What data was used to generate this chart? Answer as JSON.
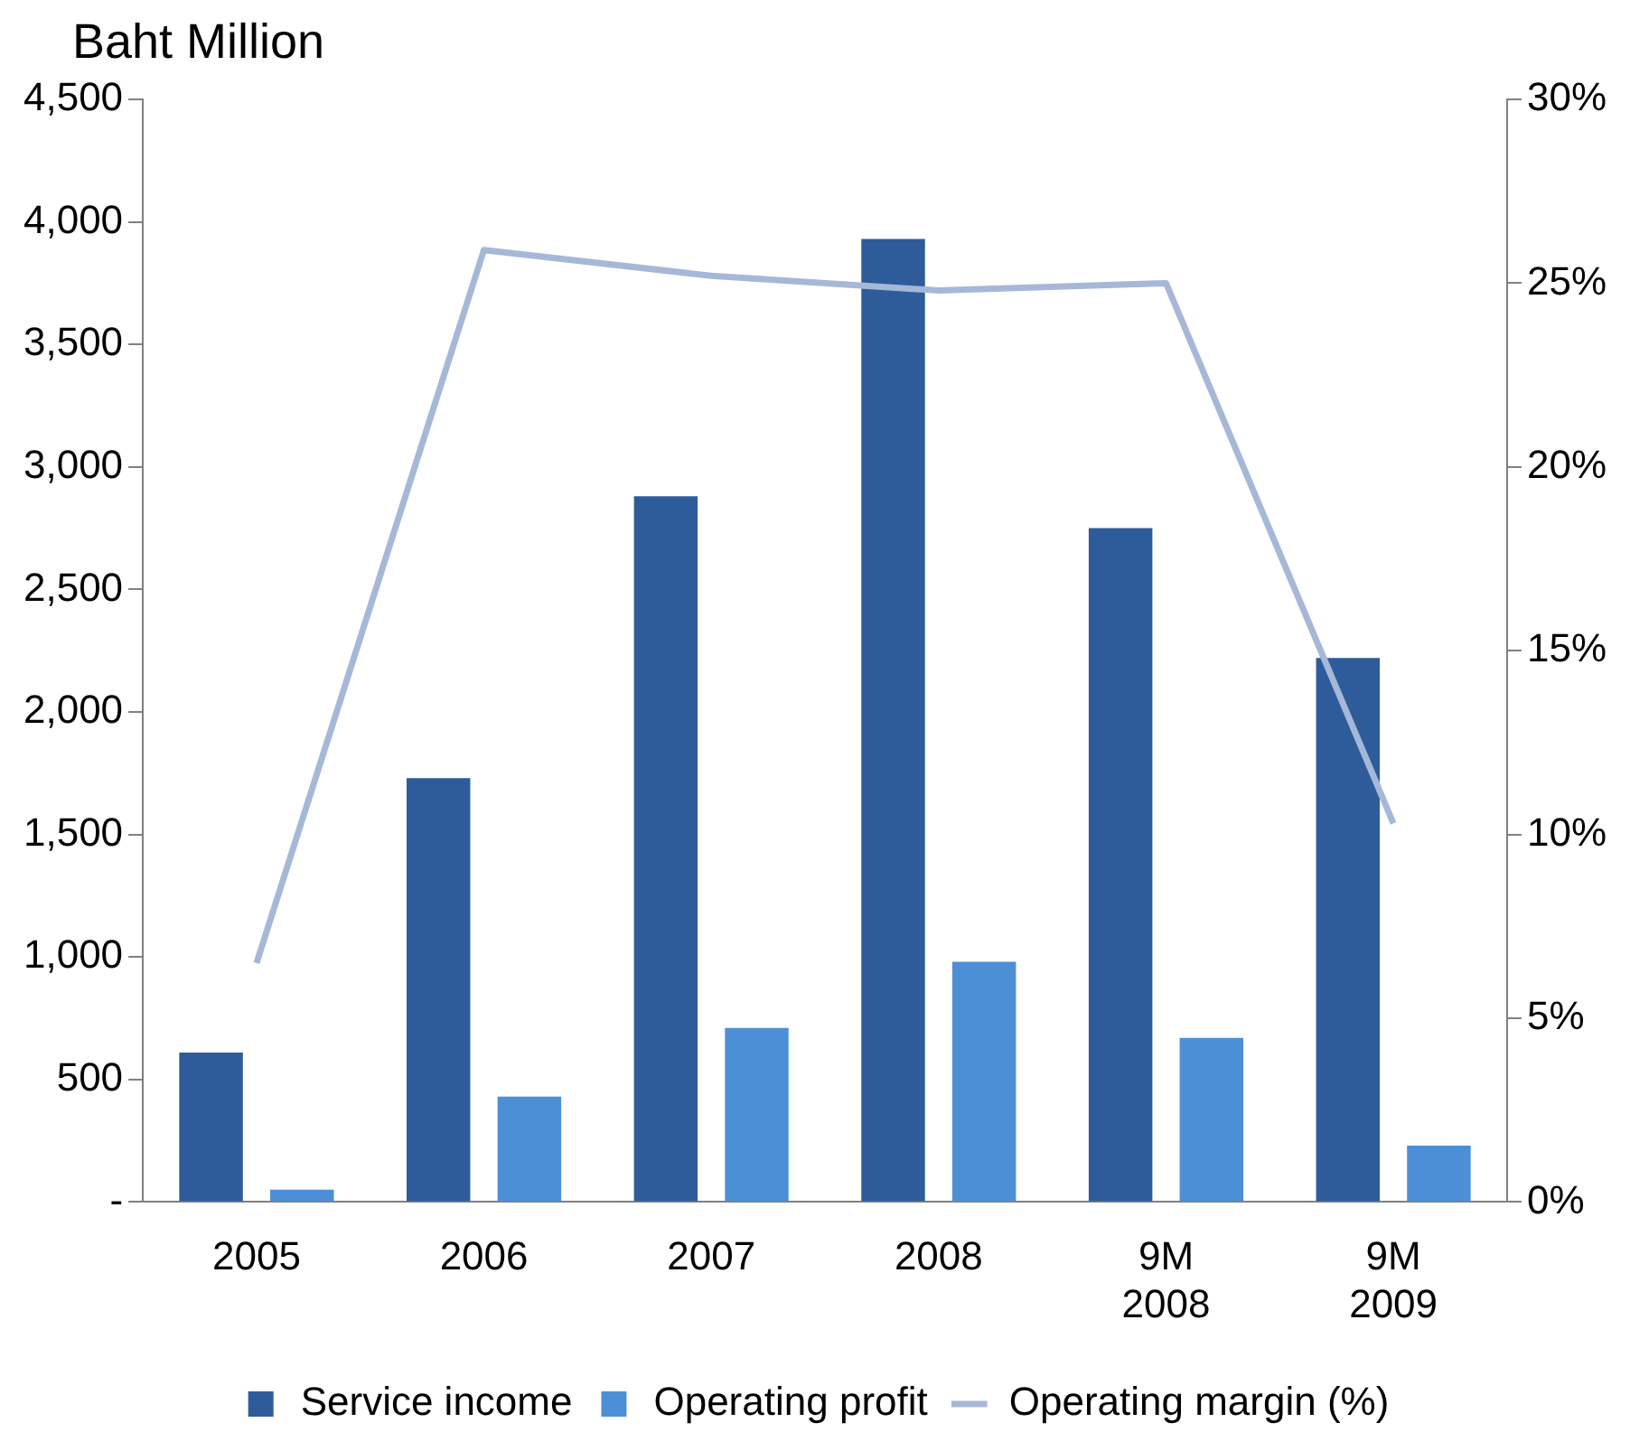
{
  "chart_data": {
    "type": "bar",
    "ylabel": "Baht Million",
    "categories": [
      "2005",
      "2006",
      "2007",
      "2008",
      "9M 2008",
      "9M 2009"
    ],
    "series": [
      {
        "name": "Service income",
        "color": "#2e5c9a",
        "values": [
          610,
          1730,
          2880,
          3930,
          2750,
          2220
        ]
      },
      {
        "name": "Operating profit",
        "color": "#4d8fd6",
        "values": [
          50,
          430,
          710,
          980,
          670,
          230
        ]
      },
      {
        "name": "Operating margin (%)",
        "type": "line",
        "axis": "y2",
        "color": "#a6b8d8",
        "values": [
          6.5,
          25.9,
          25.2,
          24.8,
          25.0,
          10.3
        ]
      }
    ],
    "ylim": [
      0,
      4500
    ],
    "yticks": [
      {
        "value": 0,
        "label": "-"
      },
      {
        "value": 500,
        "label": "500"
      },
      {
        "value": 1000,
        "label": "1,000"
      },
      {
        "value": 1500,
        "label": "1,500"
      },
      {
        "value": 2000,
        "label": "2,000"
      },
      {
        "value": 2500,
        "label": "2,500"
      },
      {
        "value": 3000,
        "label": "3,000"
      },
      {
        "value": 3500,
        "label": "3,500"
      },
      {
        "value": 4000,
        "label": "4,000"
      },
      {
        "value": 4500,
        "label": "4,500"
      }
    ],
    "y2lim": [
      0,
      30
    ],
    "y2ticks": [
      {
        "value": 0,
        "label": "0%"
      },
      {
        "value": 5,
        "label": "5%"
      },
      {
        "value": 10,
        "label": "10%"
      },
      {
        "value": 15,
        "label": "15%"
      },
      {
        "value": 20,
        "label": "20%"
      },
      {
        "value": 25,
        "label": "25%"
      },
      {
        "value": 30,
        "label": "30%"
      }
    ],
    "grid": false,
    "legend": "bottom",
    "marker": "none"
  }
}
